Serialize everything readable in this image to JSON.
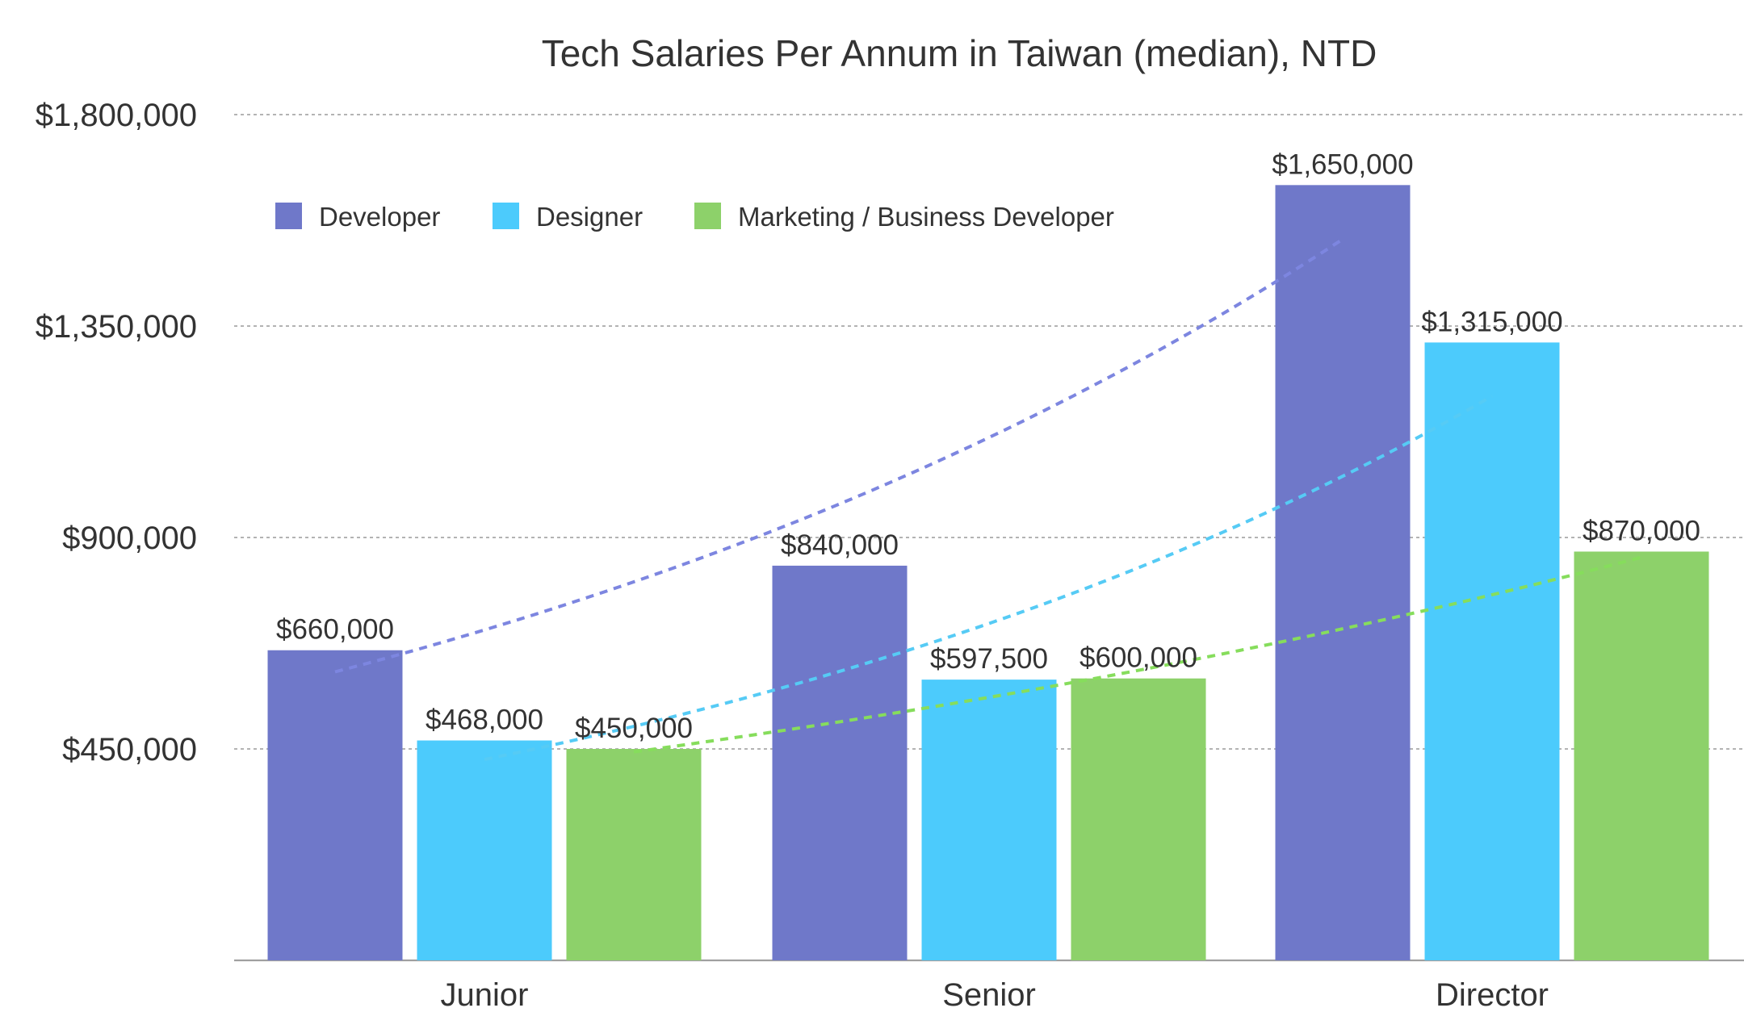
{
  "chart_data": {
    "type": "bar",
    "title": "Tech Salaries Per Annum in Taiwan (median), NTD",
    "xlabel": "",
    "ylabel": "",
    "categories": [
      "Junior",
      "Senior",
      "Director"
    ],
    "ylim": [
      0,
      1800000
    ],
    "yticks": [
      450000,
      900000,
      1350000,
      1800000
    ],
    "ytick_labels": [
      "$450,000",
      "$900,000",
      "$1,350,000",
      "$1,800,000"
    ],
    "grid": true,
    "legend_position": "top-left",
    "series": [
      {
        "name": "Developer",
        "color": "#6f78c9",
        "trend_color": "#7d86e0",
        "values": [
          660000,
          840000,
          1650000
        ],
        "labels": [
          "$660,000",
          "$840,000",
          "$1,650,000"
        ]
      },
      {
        "name": "Designer",
        "color": "#4ccbfc",
        "trend_color": "#56cbf5",
        "values": [
          468000,
          597500,
          1315000
        ],
        "labels": [
          "$468,000",
          "$597,500",
          "$1,315,000"
        ]
      },
      {
        "name": "Marketing / Business Developer",
        "color": "#8dd16a",
        "trend_color": "#86dd5c",
        "values": [
          450000,
          600000,
          870000
        ],
        "labels": [
          "$450,000",
          "$600,000",
          "$870,000"
        ]
      }
    ],
    "trendlines": "exponential, dashed"
  }
}
